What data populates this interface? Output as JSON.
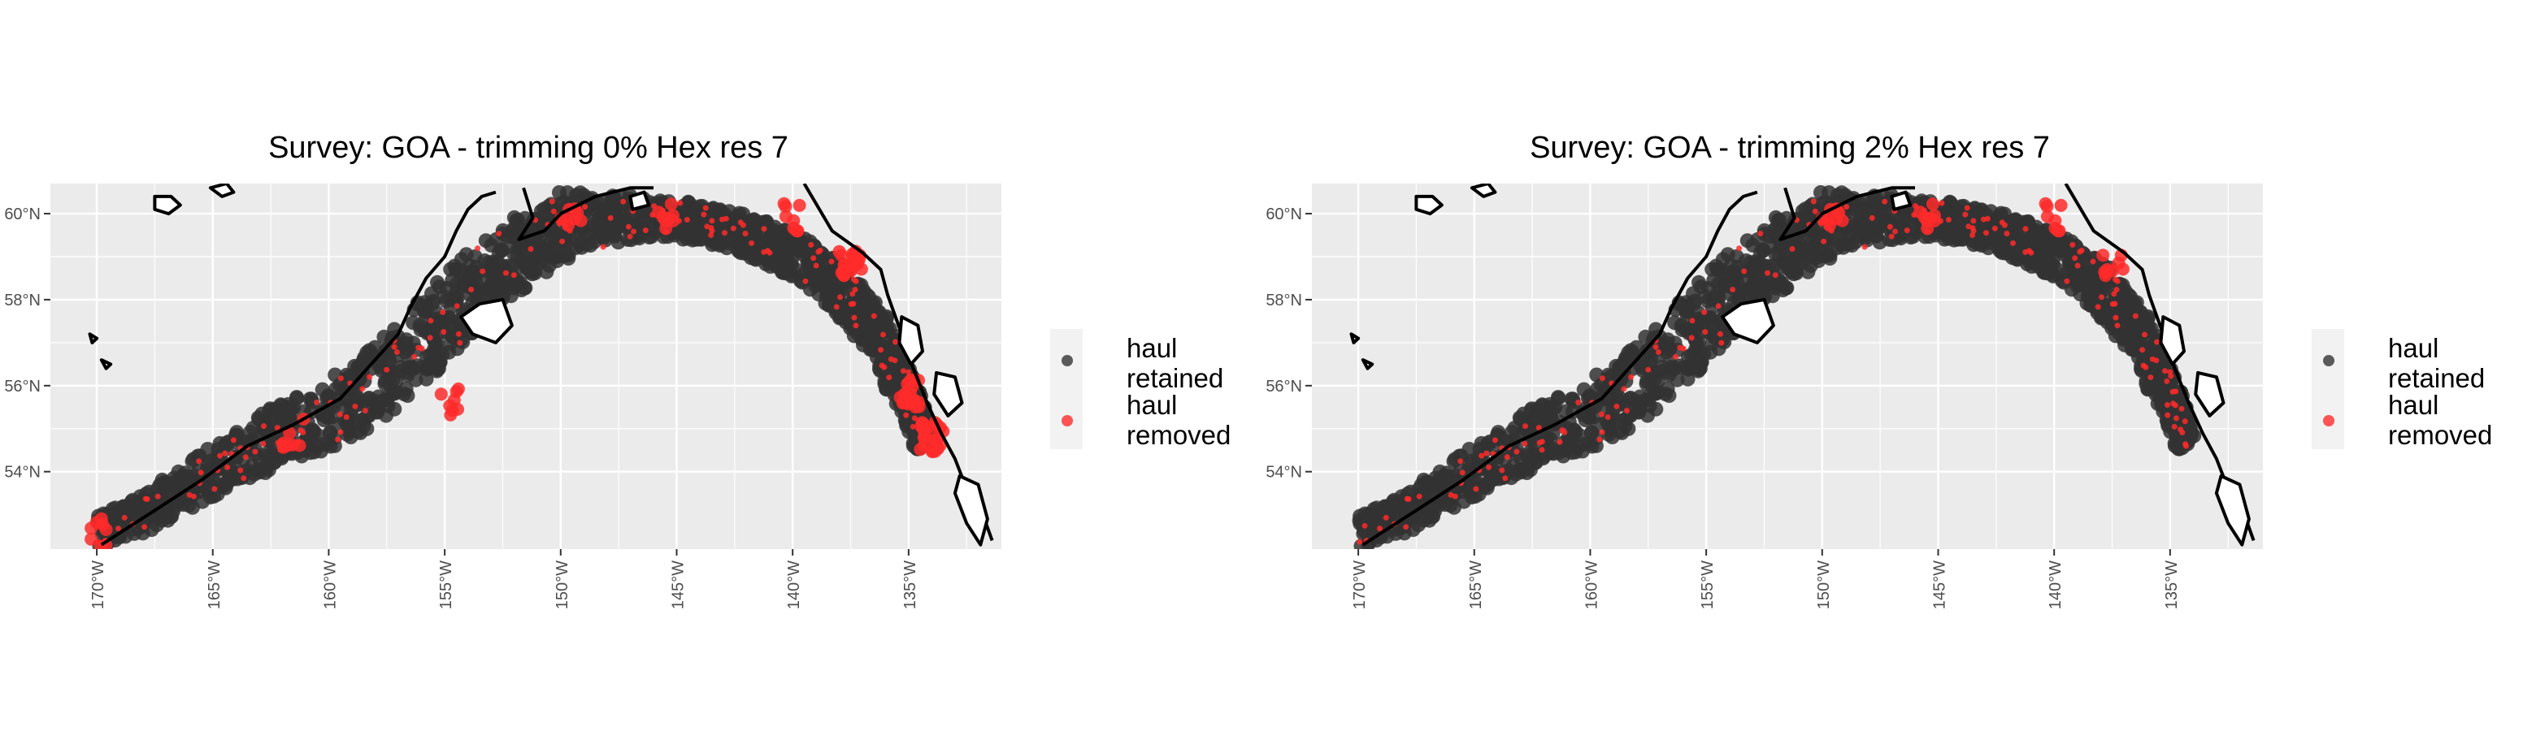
{
  "panels": [
    {
      "title": "Survey: GOA - trimming 0% Hex res 7",
      "trim_pct": 0,
      "legend": {
        "entries": [
          {
            "label_line1": "haul",
            "label_line2": "retained",
            "color": "#333333"
          },
          {
            "label_line1": "haul",
            "label_line2": "removed",
            "color": "#ff2a2a"
          }
        ]
      }
    },
    {
      "title": "Survey: GOA - trimming 2% Hex res 7",
      "trim_pct": 2,
      "legend": {
        "entries": [
          {
            "label_line1": "haul",
            "label_line2": "retained",
            "color": "#333333"
          },
          {
            "label_line1": "haul",
            "label_line2": "removed",
            "color": "#ff2a2a"
          }
        ]
      }
    }
  ],
  "chart_data": {
    "type": "scatter",
    "x_range": [
      -172,
      -131
    ],
    "y_range": [
      52.2,
      60.7
    ],
    "x_ticks": [
      {
        "value": -170,
        "label": "170°W"
      },
      {
        "value": -165,
        "label": "165°W"
      },
      {
        "value": -160,
        "label": "160°W"
      },
      {
        "value": -155,
        "label": "155°W"
      },
      {
        "value": -150,
        "label": "150°W"
      },
      {
        "value": -145,
        "label": "145°W"
      },
      {
        "value": -140,
        "label": "140°W"
      },
      {
        "value": -135,
        "label": "135°W"
      }
    ],
    "y_ticks": [
      {
        "value": 54,
        "label": "54°N"
      },
      {
        "value": 56,
        "label": "56°N"
      },
      {
        "value": 58,
        "label": "58°N"
      },
      {
        "value": 60,
        "label": "60°N"
      }
    ],
    "grid": true,
    "panel_background": "#ebebeb",
    "legend_placement": "right",
    "coastline": [
      [
        [
          -169.8,
          52.3
        ],
        [
          -167.5,
          53.1
        ],
        [
          -165.5,
          53.8
        ],
        [
          -163.5,
          54.6
        ],
        [
          -161.5,
          55.1
        ],
        [
          -159.5,
          55.7
        ],
        [
          -158.0,
          56.6
        ],
        [
          -157.0,
          57.2
        ],
        [
          -156.5,
          57.8
        ],
        [
          -155.8,
          58.5
        ],
        [
          -155.0,
          59.0
        ],
        [
          -154.5,
          59.6
        ],
        [
          -154.0,
          60.1
        ],
        [
          -153.4,
          60.4
        ],
        [
          -152.8,
          60.5
        ]
      ],
      [
        [
          -151.6,
          60.6
        ],
        [
          -151.2,
          59.9
        ],
        [
          -151.8,
          59.4
        ],
        [
          -150.7,
          59.6
        ],
        [
          -150.0,
          60.0
        ],
        [
          -148.5,
          60.4
        ],
        [
          -147.0,
          60.6
        ],
        [
          -146.0,
          60.6
        ]
      ],
      [
        [
          -139.5,
          60.7
        ],
        [
          -138.3,
          59.6
        ],
        [
          -137.0,
          59.1
        ],
        [
          -136.2,
          58.7
        ],
        [
          -135.9,
          58.1
        ],
        [
          -135.3,
          57.2
        ],
        [
          -134.8,
          56.4
        ],
        [
          -134.2,
          55.6
        ],
        [
          -133.6,
          54.9
        ],
        [
          -133.0,
          54.3
        ],
        [
          -132.5,
          53.6
        ],
        [
          -131.8,
          53.0
        ],
        [
          -131.4,
          52.4
        ]
      ]
    ],
    "islands": [
      [
        [
          -167.5,
          60.4
        ],
        [
          -166.8,
          60.4
        ],
        [
          -166.4,
          60.2
        ],
        [
          -166.9,
          60.0
        ],
        [
          -167.5,
          60.1
        ],
        [
          -167.5,
          60.4
        ]
      ],
      [
        [
          -165.1,
          60.6
        ],
        [
          -164.6,
          60.4
        ],
        [
          -164.1,
          60.5
        ],
        [
          -164.4,
          60.7
        ],
        [
          -165.1,
          60.6
        ]
      ],
      [
        [
          -153.5,
          57.9
        ],
        [
          -152.5,
          58.0
        ],
        [
          -152.1,
          57.4
        ],
        [
          -152.8,
          57.0
        ],
        [
          -153.8,
          57.2
        ],
        [
          -154.3,
          57.6
        ],
        [
          -153.5,
          57.9
        ]
      ],
      [
        [
          -147.0,
          60.4
        ],
        [
          -146.4,
          60.5
        ],
        [
          -146.2,
          60.2
        ],
        [
          -146.9,
          60.1
        ],
        [
          -147.0,
          60.4
        ]
      ],
      [
        [
          -132.8,
          53.9
        ],
        [
          -132.0,
          53.7
        ],
        [
          -131.6,
          52.9
        ],
        [
          -131.9,
          52.3
        ],
        [
          -132.5,
          52.8
        ],
        [
          -133.0,
          53.5
        ],
        [
          -132.8,
          53.9
        ]
      ],
      [
        [
          -135.3,
          57.6
        ],
        [
          -134.6,
          57.4
        ],
        [
          -134.4,
          56.8
        ],
        [
          -134.9,
          56.5
        ],
        [
          -135.4,
          57.0
        ],
        [
          -135.3,
          57.6
        ]
      ],
      [
        [
          -133.8,
          56.3
        ],
        [
          -133.0,
          56.2
        ],
        [
          -132.7,
          55.6
        ],
        [
          -133.3,
          55.3
        ],
        [
          -133.9,
          55.8
        ],
        [
          -133.8,
          56.3
        ]
      ],
      [
        [
          -170.3,
          57.2
        ],
        [
          -170.0,
          57.1
        ],
        [
          -170.2,
          57.0
        ],
        [
          -170.3,
          57.2
        ]
      ],
      [
        [
          -169.8,
          56.6
        ],
        [
          -169.4,
          56.5
        ],
        [
          -169.6,
          56.4
        ],
        [
          -169.8,
          56.6
        ]
      ],
      [
        [
          -172.6,
          52.6
        ],
        [
          -172.3,
          52.5
        ],
        [
          -172.4,
          52.4
        ],
        [
          -172.6,
          52.6
        ]
      ]
    ],
    "survey_track": [
      [
        -170.0,
        52.6
      ],
      [
        -168.0,
        53.0
      ],
      [
        -166.0,
        53.7
      ],
      [
        -164.0,
        54.3
      ],
      [
        -162.0,
        54.9
      ],
      [
        -160.0,
        55.3
      ],
      [
        -158.0,
        56.0
      ],
      [
        -156.0,
        57.0
      ],
      [
        -154.5,
        57.8
      ],
      [
        -153.0,
        58.6
      ],
      [
        -151.5,
        59.2
      ],
      [
        -150.0,
        59.7
      ],
      [
        -148.0,
        59.9
      ],
      [
        -146.0,
        59.9
      ],
      [
        -144.0,
        59.8
      ],
      [
        -142.5,
        59.6
      ],
      [
        -141.0,
        59.3
      ],
      [
        -139.5,
        58.9
      ],
      [
        -138.0,
        58.3
      ],
      [
        -137.0,
        57.6
      ],
      [
        -136.0,
        57.0
      ],
      [
        -135.5,
        56.2
      ],
      [
        -134.8,
        55.4
      ],
      [
        -134.3,
        54.6
      ]
    ],
    "survey_width": [
      0.35,
      0.45,
      0.55,
      0.65,
      0.7,
      0.8,
      0.85,
      0.9,
      0.95,
      0.95,
      0.9,
      0.8,
      0.6,
      0.45,
      0.45,
      0.45,
      0.5,
      0.55,
      0.6,
      0.6,
      0.55,
      0.55,
      0.5,
      0.4
    ],
    "removed_clusters": [
      {
        "lon": -149.5,
        "lat": 60.0
      },
      {
        "lon": -145.6,
        "lat": 60.0
      },
      {
        "lon": -140.2,
        "lat": 59.9
      },
      {
        "lon": -137.5,
        "lat": 58.8
      },
      {
        "lon": -135.0,
        "lat": 55.8
      },
      {
        "lon": -134.0,
        "lat": 54.8
      },
      {
        "lon": -169.8,
        "lat": 52.6
      },
      {
        "lon": -154.7,
        "lat": 55.6
      },
      {
        "lon": -161.5,
        "lat": 54.9
      }
    ],
    "series": [
      {
        "name": "haul retained",
        "color": "#333333"
      },
      {
        "name": "haul removed",
        "color": "#ff2a2a"
      }
    ]
  }
}
